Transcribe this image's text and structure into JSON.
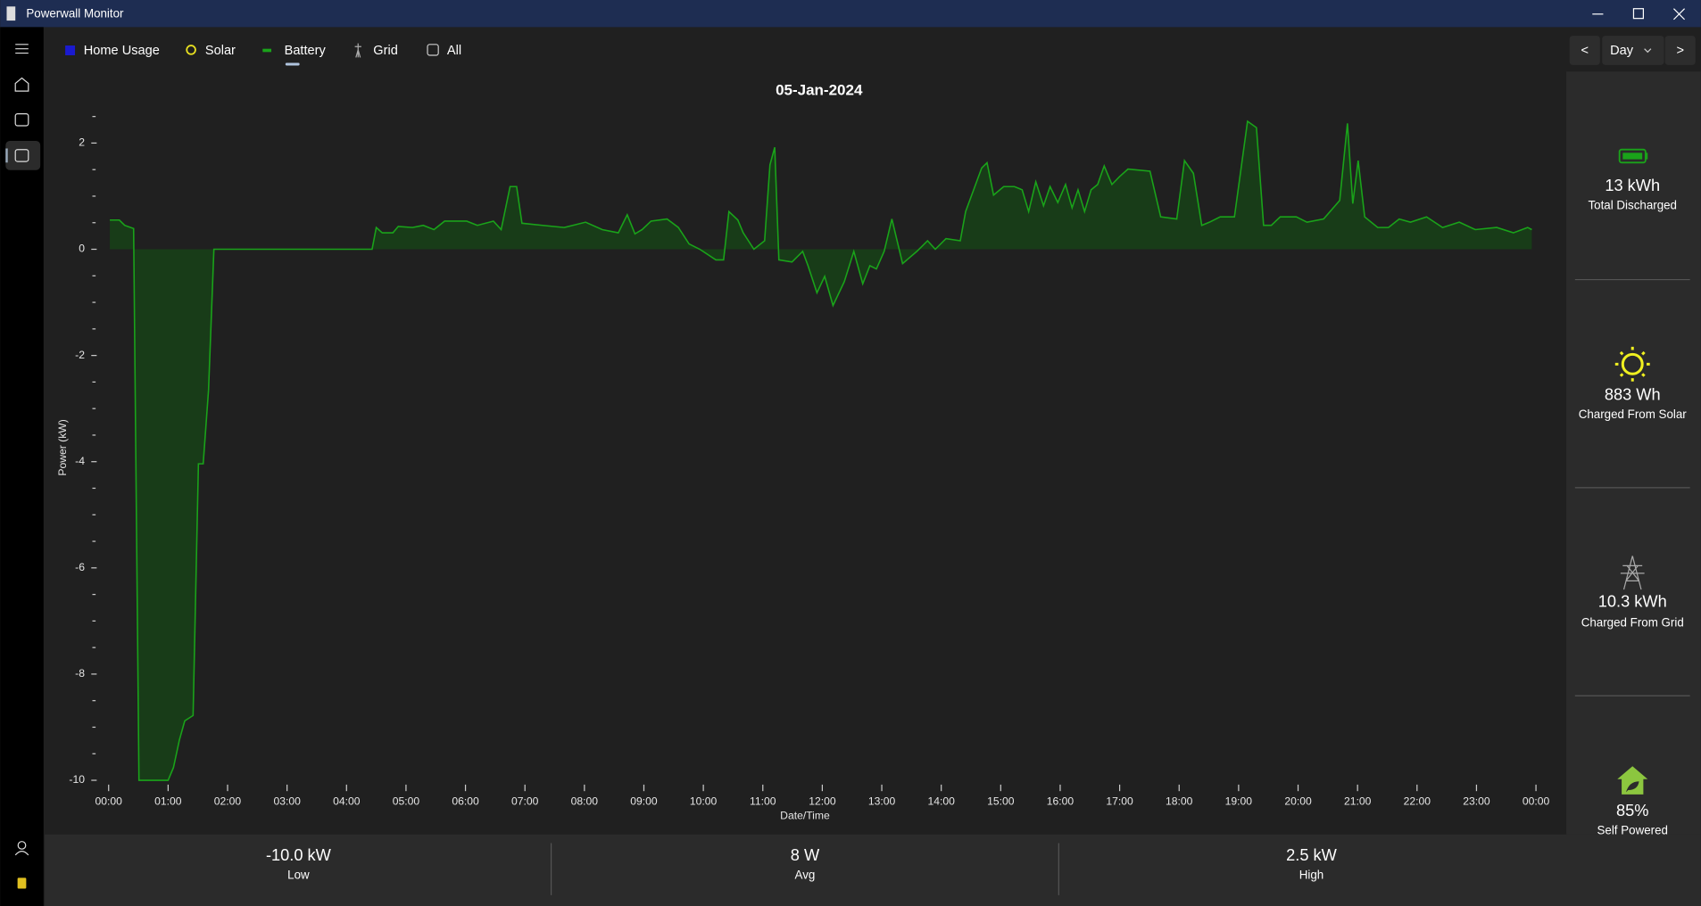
{
  "window": {
    "title": "Powerwall Monitor"
  },
  "tabs": [
    "Home Usage",
    "Solar",
    "Battery",
    "Grid",
    "All"
  ],
  "period": {
    "prev": "<",
    "mode": "Day",
    "next": ">"
  },
  "chart_data": {
    "type": "area",
    "title": "05-Jan-2024",
    "x_label": "Date/Time",
    "y_label": "Power (kW)",
    "xlim": [
      0,
      24
    ],
    "xticks": [
      {
        "value": 0,
        "label": "00:00"
      },
      {
        "value": 1,
        "label": "01:00"
      },
      {
        "value": 2,
        "label": "02:00"
      },
      {
        "value": 3,
        "label": "03:00"
      },
      {
        "value": 4,
        "label": "04:00"
      },
      {
        "value": 5,
        "label": "05:00"
      },
      {
        "value": 6,
        "label": "06:00"
      },
      {
        "value": 7,
        "label": "07:00"
      },
      {
        "value": 8,
        "label": "08:00"
      },
      {
        "value": 9,
        "label": "09:00"
      },
      {
        "value": 10,
        "label": "10:00"
      },
      {
        "value": 11,
        "label": "11:00"
      },
      {
        "value": 12,
        "label": "12:00"
      },
      {
        "value": 13,
        "label": "13:00"
      },
      {
        "value": 14,
        "label": "14:00"
      },
      {
        "value": 15,
        "label": "15:00"
      },
      {
        "value": 16,
        "label": "16:00"
      },
      {
        "value": 17,
        "label": "17:00"
      },
      {
        "value": 18,
        "label": "18:00"
      },
      {
        "value": 19,
        "label": "19:00"
      },
      {
        "value": 20,
        "label": "20:00"
      },
      {
        "value": 21,
        "label": "21:00"
      },
      {
        "value": 22,
        "label": "22:00"
      },
      {
        "value": 23,
        "label": "23:00"
      },
      {
        "value": 24,
        "label": "00:00"
      }
    ],
    "ylim": [
      -10,
      2.5
    ],
    "yticks": [
      -10,
      -8,
      -6,
      -4,
      -2,
      0,
      2
    ],
    "yminorticks": [
      -9.5,
      -9,
      -8.5,
      -7.5,
      -7,
      -6.5,
      -5.5,
      -5,
      -4.5,
      -3.5,
      -3,
      -2.5,
      -1.5,
      -1,
      -0.5,
      0.5,
      1,
      1.5,
      2.5
    ],
    "series": [
      {
        "name": "Battery",
        "color": "#1aa31a",
        "fill": "#173f17",
        "x": [
          0.02,
          0.18,
          0.27,
          0.42,
          0.51,
          1.0,
          1.09,
          1.19,
          1.28,
          1.42,
          1.51,
          1.59,
          1.68,
          1.77,
          4.43,
          4.5,
          4.6,
          4.78,
          4.87,
          5.11,
          5.29,
          5.47,
          5.65,
          6.02,
          6.2,
          6.47,
          6.6,
          6.75,
          6.86,
          6.95,
          7.3,
          7.66,
          8.02,
          8.3,
          8.57,
          8.72,
          8.85,
          8.97,
          9.12,
          9.39,
          9.58,
          9.76,
          9.94,
          10.21,
          10.34,
          10.43,
          10.58,
          10.67,
          10.85,
          11.03,
          11.12,
          11.2,
          11.27,
          11.49,
          11.67,
          11.76,
          11.91,
          12.04,
          12.18,
          12.37,
          12.53,
          12.68,
          12.8,
          12.91,
          13.04,
          13.17,
          13.35,
          13.59,
          13.77,
          13.9,
          14.08,
          14.32,
          14.41,
          14.68,
          14.77,
          14.88,
          15.05,
          15.23,
          15.36,
          15.47,
          15.59,
          15.72,
          15.83,
          15.96,
          16.09,
          16.2,
          16.3,
          16.41,
          16.52,
          16.63,
          16.74,
          16.87,
          17.0,
          17.14,
          17.51,
          17.69,
          17.96,
          18.09,
          18.24,
          18.38,
          18.51,
          18.69,
          18.93,
          19.15,
          19.3,
          19.42,
          19.55,
          19.7,
          19.97,
          20.15,
          20.43,
          20.7,
          20.83,
          20.92,
          21.01,
          21.12,
          21.34,
          21.52,
          21.7,
          21.89,
          22.16,
          22.43,
          22.71,
          22.98,
          23.34,
          23.62,
          23.86,
          23.93
        ],
        "values": [
          0.55,
          0.55,
          0.45,
          0.39,
          -10,
          -10,
          -9.76,
          -9.24,
          -8.88,
          -8.78,
          -4.04,
          -4.04,
          -2.65,
          0,
          0,
          0.41,
          0.31,
          0.31,
          0.43,
          0.41,
          0.45,
          0.37,
          0.53,
          0.53,
          0.45,
          0.53,
          0.37,
          1.18,
          1.18,
          0.49,
          0.45,
          0.41,
          0.51,
          0.37,
          0.31,
          0.65,
          0.29,
          0.37,
          0.53,
          0.57,
          0.41,
          0.1,
          0,
          -0.2,
          -0.2,
          0.71,
          0.55,
          0.31,
          0,
          0.16,
          1.59,
          1.92,
          -0.2,
          -0.24,
          -0.04,
          -0.31,
          -0.82,
          -0.51,
          -1.06,
          -0.61,
          -0.04,
          -0.65,
          -0.31,
          -0.37,
          -0.04,
          0.57,
          -0.27,
          -0.04,
          0.16,
          0,
          0.2,
          0.16,
          0.71,
          1.53,
          1.63,
          1.02,
          1.18,
          1.18,
          1.12,
          0.71,
          1.27,
          0.82,
          1.18,
          0.88,
          1.22,
          0.78,
          1.12,
          0.71,
          1.12,
          1.22,
          1.57,
          1.22,
          1.37,
          1.51,
          1.47,
          0.61,
          0.57,
          1.67,
          1.43,
          0.45,
          0.51,
          0.61,
          0.61,
          2.41,
          2.29,
          0.45,
          0.45,
          0.61,
          0.61,
          0.51,
          0.57,
          0.92,
          2.37,
          0.86,
          1.67,
          0.61,
          0.41,
          0.41,
          0.57,
          0.51,
          0.61,
          0.41,
          0.51,
          0.37,
          0.41,
          0.31,
          0.41,
          0.37
        ]
      }
    ]
  },
  "summary": [
    {
      "value": "13 kWh",
      "label": "Total Discharged"
    },
    {
      "value": "883 Wh",
      "label": "Charged From Solar"
    },
    {
      "value": "10.3 kWh",
      "label": "Charged From Grid"
    },
    {
      "value": "85%",
      "label": "Self Powered"
    }
  ],
  "stats": [
    {
      "value": "-10.0 kW",
      "label": "Low"
    },
    {
      "value": "8 W",
      "label": "Avg"
    },
    {
      "value": "2.5 kW",
      "label": "High"
    }
  ]
}
